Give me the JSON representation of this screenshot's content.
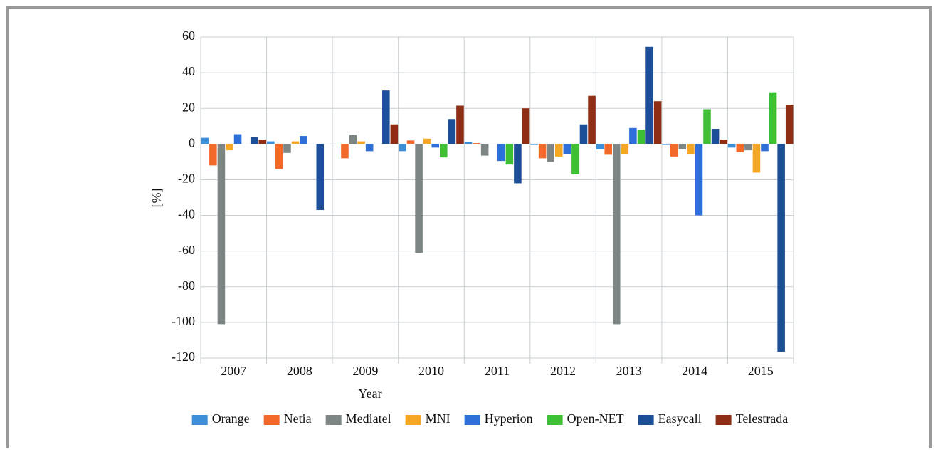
{
  "chart_data": {
    "type": "bar",
    "x_label": "Year",
    "y_label": "[%]",
    "categories": [
      "2007",
      "2008",
      "2009",
      "2010",
      "2011",
      "2012",
      "2013",
      "2014",
      "2015"
    ],
    "series": [
      {
        "name": "Orange",
        "color": "#3d8fd8",
        "values": [
          3.5,
          1.5,
          0,
          -4,
          1,
          -0.5,
          -3,
          -0.5,
          -2
        ]
      },
      {
        "name": "Netia",
        "color": "#f2692a",
        "values": [
          -12,
          -14,
          -8,
          2,
          0.5,
          -8,
          -6,
          -7,
          -4.5
        ]
      },
      {
        "name": "Mediatel",
        "color": "#7d8585",
        "values": [
          -101,
          -5,
          5,
          -61,
          -6.5,
          -10,
          -101,
          -3,
          -3.5
        ]
      },
      {
        "name": "MNI",
        "color": "#f5a623",
        "values": [
          -3.5,
          1.5,
          1.5,
          3,
          0,
          -7,
          -5.5,
          -5.5,
          -16
        ]
      },
      {
        "name": "Hyperion",
        "color": "#2e6fd8",
        "values": [
          5.5,
          4.5,
          -4,
          -2,
          -9.5,
          -5.5,
          9,
          -40,
          -4
        ]
      },
      {
        "name": "Open-NET",
        "color": "#3fbf33",
        "values": [
          0,
          0,
          0,
          -7.5,
          -11.5,
          -17,
          8,
          19.5,
          29
        ]
      },
      {
        "name": "Easycall",
        "color": "#1c4f98",
        "values": [
          4,
          -37,
          30,
          14,
          -22,
          11,
          54.5,
          8.5,
          -116.5
        ]
      },
      {
        "name": "Telestrada",
        "color": "#8e2e14",
        "values": [
          2.5,
          0,
          11,
          21.5,
          20,
          27,
          24,
          2.5,
          22
        ]
      }
    ],
    "ylim": [
      -120,
      60
    ],
    "yticks": [
      -120,
      -100,
      -80,
      -60,
      -40,
      -20,
      0,
      20,
      40,
      60
    ],
    "grid": true,
    "legend": "bottom"
  }
}
